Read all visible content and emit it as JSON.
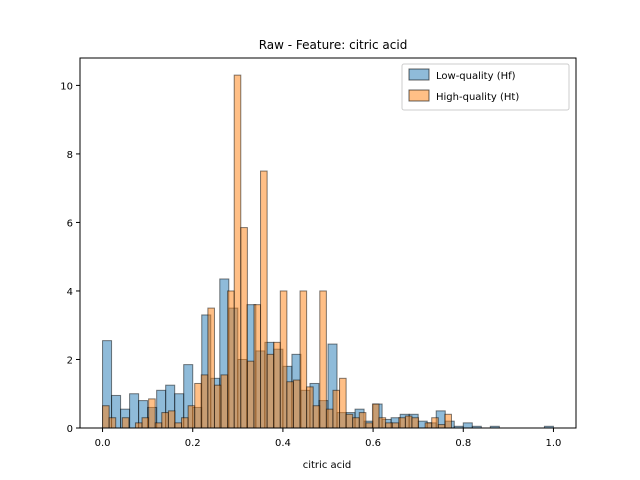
{
  "chart_data": {
    "type": "bar",
    "title": "Raw - Feature: citric acid",
    "xlabel": "citric acid",
    "ylabel": "",
    "xlim": [
      -0.05,
      1.05
    ],
    "ylim": [
      0,
      10.8
    ],
    "xticks": [
      0.0,
      0.2,
      0.4,
      0.6,
      0.8,
      1.0
    ],
    "xtick_labels": [
      "0.0",
      "0.2",
      "0.4",
      "0.6",
      "0.8",
      "1.0"
    ],
    "yticks": [
      0,
      2,
      4,
      6,
      8,
      10
    ],
    "ytick_labels": [
      "0",
      "2",
      "4",
      "6",
      "8",
      "10"
    ],
    "legend_position": "top-right",
    "series": [
      {
        "name": "Low-quality (Hf)",
        "color": "#1f77b4",
        "bin_width": 0.02,
        "bins": [
          {
            "x": 0.0,
            "y": 2.55
          },
          {
            "x": 0.02,
            "y": 0.95
          },
          {
            "x": 0.04,
            "y": 0.55
          },
          {
            "x": 0.06,
            "y": 1.0
          },
          {
            "x": 0.08,
            "y": 0.8
          },
          {
            "x": 0.1,
            "y": 0.6
          },
          {
            "x": 0.12,
            "y": 1.1
          },
          {
            "x": 0.14,
            "y": 1.25
          },
          {
            "x": 0.16,
            "y": 1.0
          },
          {
            "x": 0.18,
            "y": 1.85
          },
          {
            "x": 0.2,
            "y": 0.6
          },
          {
            "x": 0.22,
            "y": 3.3
          },
          {
            "x": 0.24,
            "y": 1.45
          },
          {
            "x": 0.26,
            "y": 4.35
          },
          {
            "x": 0.28,
            "y": 3.5
          },
          {
            "x": 0.3,
            "y": 2.0
          },
          {
            "x": 0.32,
            "y": 3.6
          },
          {
            "x": 0.34,
            "y": 2.25
          },
          {
            "x": 0.36,
            "y": 2.5
          },
          {
            "x": 0.38,
            "y": 2.3
          },
          {
            "x": 0.4,
            "y": 1.8
          },
          {
            "x": 0.42,
            "y": 2.15
          },
          {
            "x": 0.44,
            "y": 1.1
          },
          {
            "x": 0.46,
            "y": 1.3
          },
          {
            "x": 0.48,
            "y": 0.8
          },
          {
            "x": 0.5,
            "y": 2.45
          },
          {
            "x": 0.52,
            "y": 0.45
          },
          {
            "x": 0.54,
            "y": 0.45
          },
          {
            "x": 0.56,
            "y": 0.55
          },
          {
            "x": 0.58,
            "y": 0.2
          },
          {
            "x": 0.6,
            "y": 0.7
          },
          {
            "x": 0.62,
            "y": 0.25
          },
          {
            "x": 0.64,
            "y": 0.3
          },
          {
            "x": 0.66,
            "y": 0.4
          },
          {
            "x": 0.68,
            "y": 0.4
          },
          {
            "x": 0.7,
            "y": 0.2
          },
          {
            "x": 0.72,
            "y": 0.15
          },
          {
            "x": 0.74,
            "y": 0.5
          },
          {
            "x": 0.76,
            "y": 0.2
          },
          {
            "x": 0.78,
            "y": 0.05
          },
          {
            "x": 0.8,
            "y": 0.15
          },
          {
            "x": 0.82,
            "y": 0.05
          },
          {
            "x": 0.86,
            "y": 0.05
          },
          {
            "x": 0.98,
            "y": 0.05
          }
        ]
      },
      {
        "name": "High-quality (Ht)",
        "color": "#ff7f0e",
        "bin_width": 0.0146,
        "bins": [
          {
            "x": 0.0,
            "y": 0.65
          },
          {
            "x": 0.0146,
            "y": 0.3
          },
          {
            "x": 0.0292,
            "y": 0.0
          },
          {
            "x": 0.0438,
            "y": 0.3
          },
          {
            "x": 0.0584,
            "y": 0.0
          },
          {
            "x": 0.073,
            "y": 0.15
          },
          {
            "x": 0.0876,
            "y": 0.3
          },
          {
            "x": 0.1022,
            "y": 0.85
          },
          {
            "x": 0.1168,
            "y": 0.15
          },
          {
            "x": 0.1314,
            "y": 0.45
          },
          {
            "x": 0.146,
            "y": 0.5
          },
          {
            "x": 0.1606,
            "y": 0.15
          },
          {
            "x": 0.1752,
            "y": 0.3
          },
          {
            "x": 0.1898,
            "y": 0.65
          },
          {
            "x": 0.2044,
            "y": 1.3
          },
          {
            "x": 0.219,
            "y": 1.55
          },
          {
            "x": 0.2336,
            "y": 3.5
          },
          {
            "x": 0.2482,
            "y": 1.25
          },
          {
            "x": 0.2628,
            "y": 1.55
          },
          {
            "x": 0.2774,
            "y": 4.0
          },
          {
            "x": 0.292,
            "y": 10.3
          },
          {
            "x": 0.3066,
            "y": 5.85
          },
          {
            "x": 0.3212,
            "y": 1.95
          },
          {
            "x": 0.3358,
            "y": 3.6
          },
          {
            "x": 0.3504,
            "y": 7.5
          },
          {
            "x": 0.365,
            "y": 2.15
          },
          {
            "x": 0.3796,
            "y": 2.5
          },
          {
            "x": 0.3942,
            "y": 4.0
          },
          {
            "x": 0.4088,
            "y": 1.35
          },
          {
            "x": 0.4234,
            "y": 1.4
          },
          {
            "x": 0.438,
            "y": 4.0
          },
          {
            "x": 0.4526,
            "y": 1.2
          },
          {
            "x": 0.4672,
            "y": 0.65
          },
          {
            "x": 0.4818,
            "y": 4.0
          },
          {
            "x": 0.4964,
            "y": 0.55
          },
          {
            "x": 0.511,
            "y": 1.1
          },
          {
            "x": 0.5256,
            "y": 1.45
          },
          {
            "x": 0.5402,
            "y": 0.4
          },
          {
            "x": 0.5548,
            "y": 0.3
          },
          {
            "x": 0.5694,
            "y": 0.45
          },
          {
            "x": 0.584,
            "y": 0.15
          },
          {
            "x": 0.5986,
            "y": 0.7
          },
          {
            "x": 0.6132,
            "y": 0.3
          },
          {
            "x": 0.6278,
            "y": 0.15
          },
          {
            "x": 0.6424,
            "y": 0.15
          },
          {
            "x": 0.657,
            "y": 0.3
          },
          {
            "x": 0.6716,
            "y": 0.35
          },
          {
            "x": 0.6862,
            "y": 0.3
          },
          {
            "x": 0.7008,
            "y": 0.0
          },
          {
            "x": 0.7154,
            "y": 0.15
          },
          {
            "x": 0.73,
            "y": 0.3
          },
          {
            "x": 0.7446,
            "y": 0.1
          },
          {
            "x": 0.7592,
            "y": 0.4
          }
        ]
      }
    ]
  }
}
